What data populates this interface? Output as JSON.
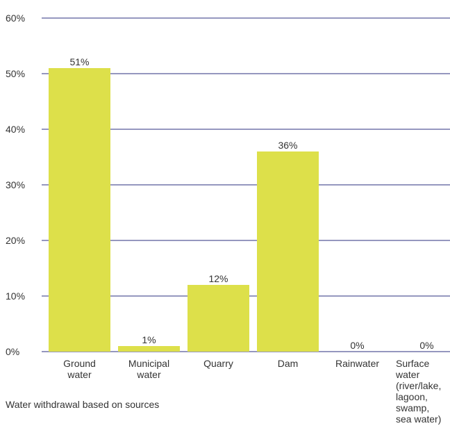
{
  "chart_data": {
    "type": "bar",
    "categories": [
      [
        "Ground",
        "water"
      ],
      [
        "Municipal",
        "water"
      ],
      [
        "Quarry"
      ],
      [
        "Dam"
      ],
      [
        "Rainwater"
      ],
      [
        "Surface",
        "water",
        "(river/lake,",
        "lagoon,",
        "swamp,",
        "sea water)"
      ]
    ],
    "values": [
      51,
      1,
      12,
      36,
      0,
      0
    ],
    "data_labels": [
      "51%",
      "1%",
      "12%",
      "36%",
      "0%",
      "0%"
    ],
    "yticks": [
      "0%",
      "10%",
      "20%",
      "30%",
      "40%",
      "50%",
      "60%"
    ],
    "ylim": [
      0,
      60
    ],
    "grid": true,
    "bar_color": "#dde04a",
    "grid_color": "#2b2f7f",
    "title": "",
    "xlabel": "",
    "ylabel": ""
  },
  "caption": "Water withdrawal based on sources"
}
